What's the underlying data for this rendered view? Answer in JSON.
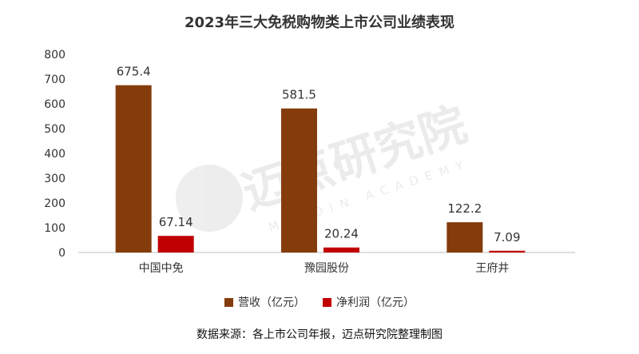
{
  "chart_data": {
    "type": "bar",
    "title": "2023年三大免税购物类上市公司业绩表现",
    "categories": [
      "中国中免",
      "豫园股份",
      "王府井"
    ],
    "series": [
      {
        "name": "营收（亿元）",
        "values": [
          675.4,
          581.5,
          122.2
        ],
        "labels": [
          "675.4",
          "581.5",
          "122.2"
        ],
        "color": "#843C0C"
      },
      {
        "name": "净利润（亿元）",
        "values": [
          67.14,
          20.24,
          7.09
        ],
        "labels": [
          "67.14",
          "20.24",
          "7.09"
        ],
        "color": "#C00000"
      }
    ],
    "ylim": [
      0,
      800
    ],
    "yticks": [
      "0",
      "100",
      "200",
      "300",
      "400",
      "500",
      "600",
      "700",
      "800"
    ],
    "grid": false,
    "legend_position": "bottom"
  },
  "watermark": {
    "cn": "迈点研究院",
    "en": "MEADIN ACADEMY"
  },
  "source_note": "数据来源：各上市公司年报，迈点研究院整理制图"
}
